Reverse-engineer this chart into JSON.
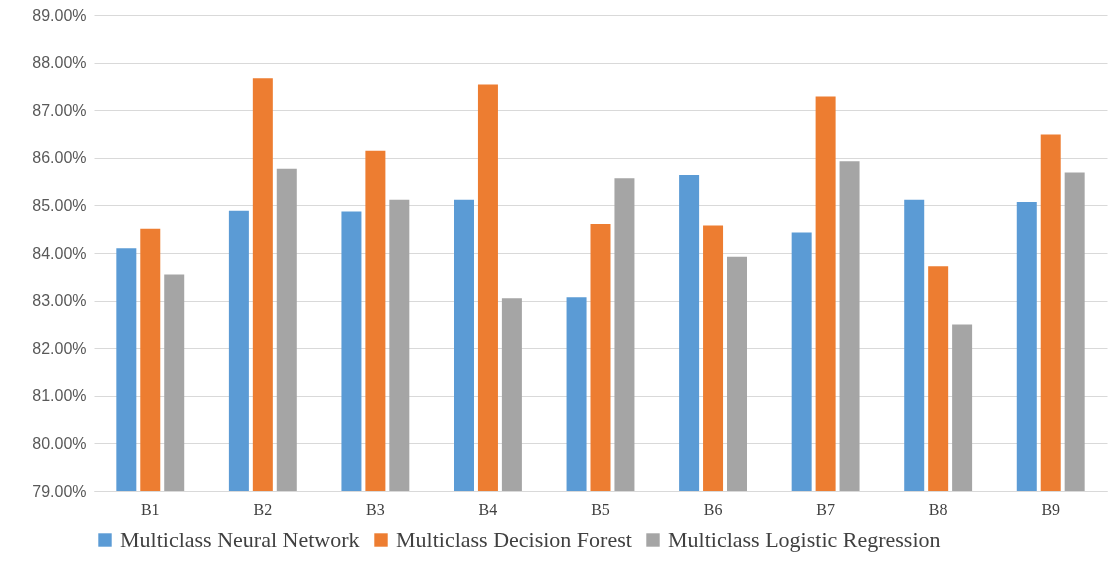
{
  "chart_data": {
    "type": "bar",
    "categories": [
      "B1",
      "B2",
      "B3",
      "B4",
      "B5",
      "B6",
      "B7",
      "B8",
      "B9"
    ],
    "series": [
      {
        "name": "Multiclass Neural Network",
        "color": "#5b9bd5",
        "values": [
          84.1,
          84.89,
          84.87,
          85.12,
          83.07,
          85.64,
          84.43,
          85.12,
          85.07
        ]
      },
      {
        "name": "Multiclass Decision Forest",
        "color": "#ed7d31",
        "values": [
          84.51,
          87.67,
          86.15,
          87.54,
          84.61,
          84.58,
          87.29,
          83.72,
          86.49
        ]
      },
      {
        "name": "Multiclass Logistic Regression",
        "color": "#a5a5a5",
        "values": [
          83.55,
          85.77,
          85.12,
          83.05,
          85.57,
          83.92,
          85.93,
          82.5,
          85.69
        ]
      }
    ],
    "ylim": [
      79,
      89
    ],
    "yticks": [
      {
        "value": 79,
        "label": "79.00%"
      },
      {
        "value": 80,
        "label": "80.00%"
      },
      {
        "value": 81,
        "label": "81.00%"
      },
      {
        "value": 82,
        "label": "82.00%"
      },
      {
        "value": 83,
        "label": "83.00%"
      },
      {
        "value": 84,
        "label": "84.00%"
      },
      {
        "value": 85,
        "label": "85.00%"
      },
      {
        "value": 86,
        "label": "86.00%"
      },
      {
        "value": 87,
        "label": "87.00%"
      },
      {
        "value": 88,
        "label": "88.00%"
      },
      {
        "value": 89,
        "label": "89.00%"
      }
    ],
    "grid": "y",
    "legend": "bottom"
  }
}
